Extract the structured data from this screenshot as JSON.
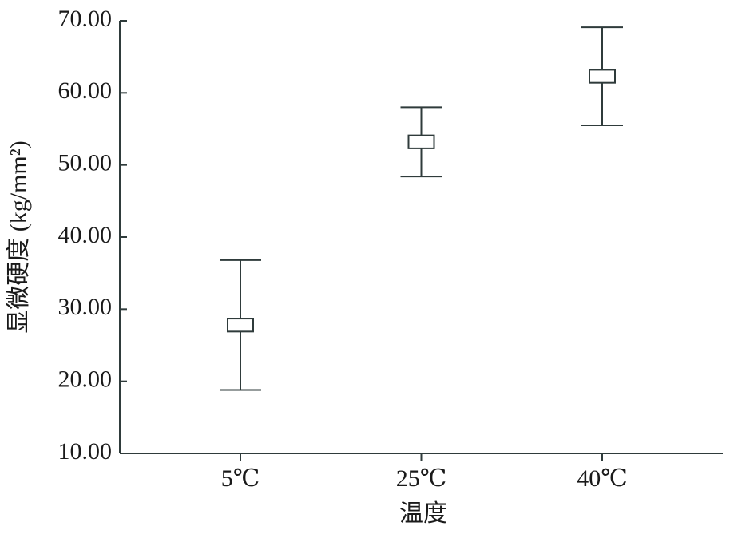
{
  "chart_data": {
    "type": "errorbar",
    "y_label": "显微硬度 (kg/mm²)",
    "x_label": "温度",
    "categories": [
      "5℃",
      "25℃",
      "40℃"
    ],
    "values": [
      27.8,
      53.2,
      62.3
    ],
    "errors": [
      9.0,
      4.8,
      6.8
    ],
    "box_errors": [
      0.9,
      0.9,
      0.9
    ],
    "color": "#2f3b3b",
    "ylim": [
      10,
      70
    ],
    "yticks": [
      {
        "value": 10,
        "label": "10.00"
      },
      {
        "value": 20,
        "label": "20.00"
      },
      {
        "value": 30,
        "label": "30.00"
      },
      {
        "value": 40,
        "label": "40.00"
      },
      {
        "value": 50,
        "label": "50.00"
      },
      {
        "value": 60,
        "label": "60.00"
      },
      {
        "value": 70,
        "label": "70.00"
      }
    ]
  }
}
